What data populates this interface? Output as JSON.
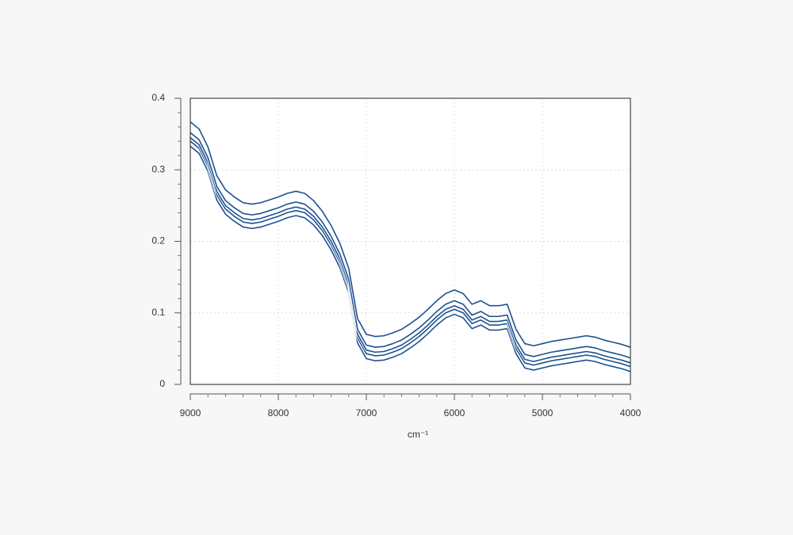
{
  "chart_data": {
    "type": "line",
    "xlabel": "cm⁻¹",
    "x": [
      9000,
      8900,
      8800,
      8700,
      8600,
      8500,
      8400,
      8300,
      8200,
      8100,
      8000,
      7900,
      7800,
      7700,
      7600,
      7500,
      7400,
      7300,
      7200,
      7100,
      7000,
      6900,
      6800,
      6700,
      6600,
      6500,
      6400,
      6300,
      6200,
      6100,
      6000,
      5900,
      5800,
      5700,
      5600,
      5500,
      5400,
      5300,
      5200,
      5100,
      5000,
      4900,
      4800,
      4700,
      4600,
      4500,
      4400,
      4300,
      4200,
      4100,
      4000
    ],
    "series": [
      {
        "color": "#1d5190",
        "values": [
          0.333,
          0.323,
          0.298,
          0.258,
          0.238,
          0.228,
          0.22,
          0.218,
          0.22,
          0.224,
          0.228,
          0.233,
          0.236,
          0.233,
          0.223,
          0.208,
          0.188,
          0.163,
          0.128,
          0.058,
          0.036,
          0.033,
          0.034,
          0.038,
          0.043,
          0.051,
          0.06,
          0.071,
          0.083,
          0.093,
          0.098,
          0.093,
          0.078,
          0.083,
          0.076,
          0.076,
          0.078,
          0.043,
          0.023,
          0.02,
          0.023,
          0.026,
          0.028,
          0.03,
          0.032,
          0.034,
          0.032,
          0.028,
          0.025,
          0.022,
          0.018
        ]
      },
      {
        "color": "#1d5190",
        "values": [
          0.34,
          0.33,
          0.305,
          0.265,
          0.245,
          0.235,
          0.227,
          0.225,
          0.227,
          0.231,
          0.235,
          0.24,
          0.243,
          0.24,
          0.23,
          0.215,
          0.195,
          0.17,
          0.135,
          0.065,
          0.043,
          0.04,
          0.041,
          0.045,
          0.05,
          0.058,
          0.067,
          0.078,
          0.09,
          0.1,
          0.105,
          0.1,
          0.085,
          0.09,
          0.083,
          0.083,
          0.085,
          0.05,
          0.03,
          0.027,
          0.03,
          0.033,
          0.035,
          0.037,
          0.039,
          0.041,
          0.039,
          0.035,
          0.032,
          0.029,
          0.025
        ]
      },
      {
        "color": "#1d5190",
        "values": [
          0.345,
          0.335,
          0.31,
          0.27,
          0.25,
          0.24,
          0.232,
          0.23,
          0.232,
          0.236,
          0.24,
          0.245,
          0.248,
          0.245,
          0.235,
          0.22,
          0.2,
          0.175,
          0.14,
          0.07,
          0.048,
          0.045,
          0.046,
          0.05,
          0.055,
          0.063,
          0.072,
          0.083,
          0.095,
          0.105,
          0.11,
          0.105,
          0.09,
          0.095,
          0.088,
          0.088,
          0.09,
          0.055,
          0.035,
          0.032,
          0.035,
          0.038,
          0.04,
          0.042,
          0.044,
          0.046,
          0.044,
          0.04,
          0.037,
          0.034,
          0.03
        ]
      },
      {
        "color": "#1d5190",
        "values": [
          0.352,
          0.342,
          0.317,
          0.277,
          0.257,
          0.247,
          0.239,
          0.237,
          0.239,
          0.243,
          0.247,
          0.252,
          0.255,
          0.252,
          0.242,
          0.227,
          0.207,
          0.182,
          0.147,
          0.077,
          0.055,
          0.052,
          0.053,
          0.057,
          0.062,
          0.07,
          0.079,
          0.09,
          0.102,
          0.112,
          0.117,
          0.112,
          0.097,
          0.102,
          0.095,
          0.095,
          0.097,
          0.062,
          0.042,
          0.039,
          0.042,
          0.045,
          0.047,
          0.049,
          0.051,
          0.053,
          0.051,
          0.047,
          0.044,
          0.041,
          0.037
        ]
      },
      {
        "color": "#1d5190",
        "values": [
          0.367,
          0.357,
          0.332,
          0.292,
          0.272,
          0.262,
          0.254,
          0.252,
          0.254,
          0.258,
          0.262,
          0.267,
          0.27,
          0.267,
          0.257,
          0.242,
          0.222,
          0.197,
          0.162,
          0.092,
          0.07,
          0.067,
          0.068,
          0.072,
          0.077,
          0.085,
          0.094,
          0.105,
          0.117,
          0.127,
          0.132,
          0.127,
          0.112,
          0.117,
          0.11,
          0.11,
          0.112,
          0.077,
          0.057,
          0.054,
          0.057,
          0.06,
          0.062,
          0.064,
          0.066,
          0.068,
          0.066,
          0.062,
          0.059,
          0.056,
          0.052
        ]
      }
    ],
    "xlim": [
      9000,
      4000
    ],
    "xticks": [
      9000,
      8000,
      7000,
      6000,
      5000,
      4000
    ],
    "xminorticks": [
      8800,
      8600,
      8400,
      8200,
      7800,
      7600,
      7400,
      7200,
      6800,
      6600,
      6400,
      6200,
      5800,
      5600,
      5400,
      5200,
      4800,
      4600,
      4400,
      4200
    ],
    "ylim": [
      0,
      0.4
    ],
    "yticks": [
      0,
      0.1,
      0.2,
      0.3,
      0.4
    ],
    "yminorticks": [
      0.02,
      0.04,
      0.06,
      0.08,
      0.12,
      0.14,
      0.16,
      0.18,
      0.22,
      0.24,
      0.26,
      0.28,
      0.32,
      0.34,
      0.36,
      0.38
    ],
    "grid": true
  }
}
